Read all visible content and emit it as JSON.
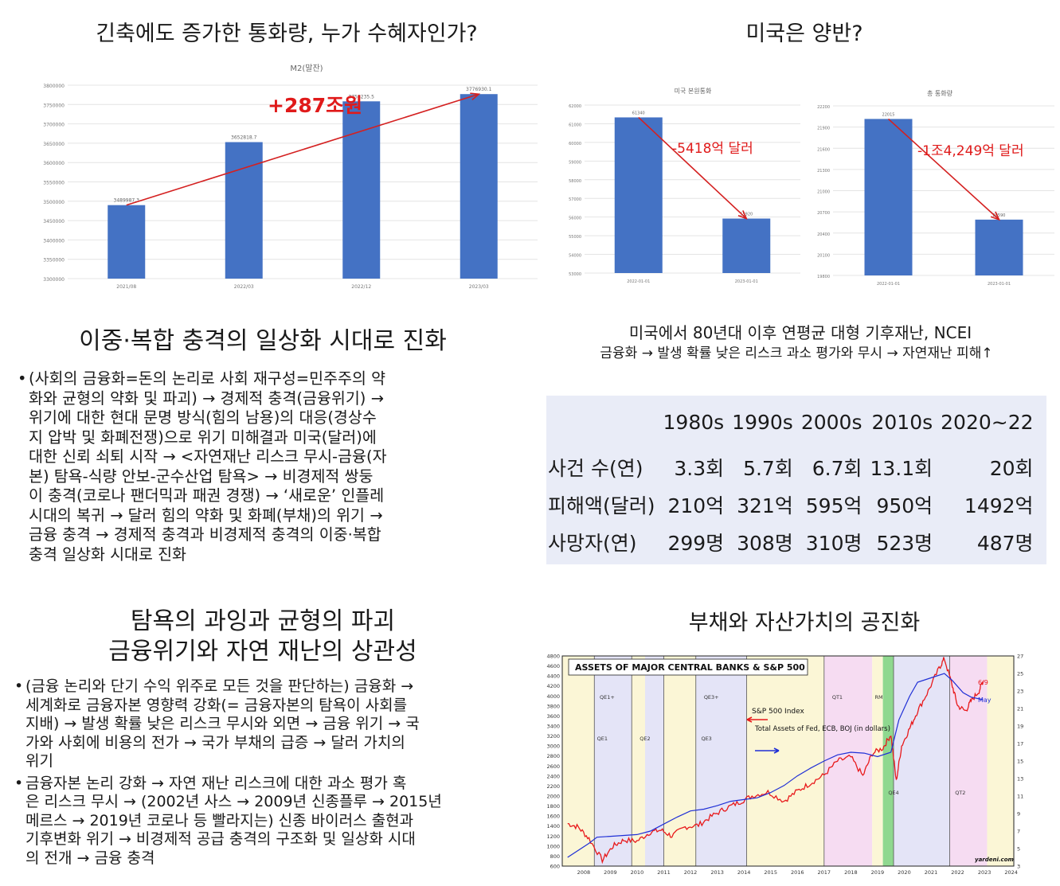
{
  "panel1": {
    "title": "긴축에도 증가한 통화량, 누가 수혜자인가?",
    "chart_title": "M2(말잔)",
    "annotation": "+287조원"
  },
  "panel2": {
    "title": "미국은 양반?",
    "left_chart_title": "미국 본원통화",
    "left_annotation": "-5418억 달러",
    "right_chart_title": "총 통화량",
    "right_annotation": "-1조4,249억 달러"
  },
  "panel3": {
    "heading": "이중·복합 충격의 일상화 시대로 진화",
    "bullets": [
      {
        "lines": [
          "(사회의 금융화=돈의 논리로 사회 재구성=민주주의 약",
          "화와 균형의 약화 및 파괴) → 경제적 충격(금융위기) →",
          "위기에 대한 현대 문명 방식(힘의 남용)의 대응(경상수",
          "지 압박 및 화폐전쟁)으로 위기 미해결과 미국(달러)에",
          "대한 신뢰 쇠퇴 시작 → <자연재난 리스크 무시-금융(자",
          "본) 탐욕-식량 안보-군수산업 탐욕> → 비경제적 쌍둥",
          "이 충격(코로나 팬더믹과 패권 경쟁) → ‘새로운’ 인플레",
          "시대의 복귀 → 달러 힘의 약화 및 화폐(부채)의 위기 →",
          "금융 충격 → 경제적 충격과 비경제적 충격의 이중·복합",
          "충격 일상화 시대로 진화"
        ]
      }
    ]
  },
  "panel4": {
    "subtitle": "미국에서 80년대 이후 연평균 대형 기후재난, NCEI",
    "subtitle2": "금융화 → 발생 확률 낮은 리스크 과소 평가와 무시 → 자연재난 피해↑",
    "table": {
      "headers": [
        "",
        "1980s",
        "1990s",
        "2000s",
        "2010s",
        "2020~22"
      ],
      "rows": [
        [
          "사건 수(연)",
          "3.3회",
          "5.7회",
          "6.7회",
          "13.1회",
          "20회"
        ],
        [
          "피해액(달러)",
          "210억",
          "321억",
          "595억",
          "950억",
          "1492억"
        ],
        [
          "사망자(연)",
          "299명",
          "308명",
          "310명",
          "523명",
          "487명"
        ]
      ]
    }
  },
  "panel5": {
    "heading_line1": "탐욕의 과잉과 균형의 파괴",
    "heading_line2": "금융위기와 자연 재난의 상관성",
    "bullets": [
      {
        "lines": [
          "(금융 논리와 단기 수익 위주로 모든 것을 판단하는) 금융화 →",
          "세계화로 금융자본 영향력 강화(= 금융자본의 탐욕이 사회를",
          "지배) → 발생 확률 낮은 리스크 무시와 외면 → 금융 위기 → 국",
          "가와 사회에 비용의 전가 → 국가 부채의 급증 → 달러 가치의",
          "위기"
        ]
      },
      {
        "lines": [
          " 금융자본 논리 강화 → 자연 재난 리스크에 대한 과소 평가 혹",
          "은 리스크 무시 → (2002년 사스 → 2009년 신종플루 → 2015년",
          "메르스 → 2019년 코로나 등 빨라지는) 신종 바이러스 출현과",
          "기후변화 위기 → 비경제적 공급 충격의 구조화 및 일상화 시대",
          "의 전개 → 금융 충격"
        ]
      }
    ]
  },
  "panel6": {
    "title": "부채와 자산가치의 공진화",
    "chart_title": "ASSETS OF MAJOR CENTRAL BANKS & S&P 500",
    "legend_sp": "S&P 500 Index",
    "legend_assets": "Total Assets of Fed, ECB, BOJ (in dollars)",
    "end_label_sp": "6/9",
    "end_label_assets": "May",
    "credit": "yardeni.com"
  },
  "chart_data": [
    {
      "type": "bar",
      "title": "M2(말잔)",
      "categories": [
        "2021/08",
        "2022/03",
        "2022/12",
        "2023/03"
      ],
      "values": [
        3489987.3,
        3652818.7,
        3758235.5,
        3776930.1
      ],
      "data_labels": [
        "3489987.3",
        "3652818.7",
        "3758235.5",
        "3776930.1"
      ],
      "ylim": [
        3300000,
        3800000
      ],
      "yticks": [
        "3300000",
        "3350000",
        "3400000",
        "3450000",
        "3500000",
        "3550000",
        "3600000",
        "3650000",
        "3700000",
        "3750000",
        "3800000"
      ],
      "color": "#4472c4",
      "annotation": "+287조원"
    },
    {
      "type": "bar",
      "title": "미국 본원통화",
      "categories": [
        "2022-01-01",
        "2023-01-01"
      ],
      "values": [
        61340,
        55920
      ],
      "data_labels": [
        "61340",
        "55920"
      ],
      "ylim": [
        53000,
        62000
      ],
      "yticks": [
        "53000",
        "54000",
        "55000",
        "56000",
        "57000",
        "58000",
        "59000",
        "60000",
        "61000",
        "62000"
      ],
      "color": "#4472c4",
      "annotation": "-5418억 달러"
    },
    {
      "type": "bar",
      "title": "총 통화량",
      "categories": [
        "2022-01-01",
        "2023-01-01"
      ],
      "values": [
        22015,
        20590
      ],
      "data_labels": [
        "22015",
        "20590"
      ],
      "ylim": [
        19800,
        22200
      ],
      "yticks": [
        "19800",
        "20100",
        "20400",
        "20700",
        "21000",
        "21300",
        "21600",
        "21900",
        "22200"
      ],
      "color": "#4472c4",
      "annotation": "-1조4,249억 달러"
    },
    {
      "type": "line",
      "title": "ASSETS OF MAJOR CENTRAL BANKS & S&P 500",
      "x": [
        "2008",
        "2009",
        "2010",
        "2011",
        "2012",
        "2013",
        "2014",
        "2015",
        "2016",
        "2017",
        "2018",
        "2019",
        "2020",
        "2021",
        "2022",
        "2023",
        "2024"
      ],
      "y_left_ticks": [
        "600",
        "800",
        "1000",
        "1200",
        "1400",
        "1600",
        "1800",
        "2000",
        "2200",
        "2400",
        "2600",
        "2800",
        "3000",
        "3200",
        "3400",
        "3600",
        "3800",
        "4000",
        "4200",
        "4400",
        "4600",
        "4800"
      ],
      "y_right_ticks": [
        "3",
        "5",
        "7",
        "9",
        "11",
        "13",
        "15",
        "17",
        "19",
        "21",
        "23",
        "25",
        "27"
      ],
      "ylim_left": [
        600,
        4800
      ],
      "ylim_right": [
        3,
        27
      ],
      "series": [
        {
          "name": "S&P 500 Index",
          "color": "#e8191b",
          "x": [
            2007.9,
            2008.3,
            2008.7,
            2009.2,
            2009.6,
            2010.0,
            2010.5,
            2011.0,
            2011.4,
            2011.8,
            2012.3,
            2012.8,
            2013.3,
            2013.8,
            2014.3,
            2014.8,
            2015.4,
            2016.0,
            2016.5,
            2017.0,
            2017.5,
            2018.0,
            2018.5,
            2018.95,
            2019.3,
            2019.7,
            2020.0,
            2020.2,
            2020.4,
            2020.7,
            2021.0,
            2021.4,
            2021.8,
            2022.0,
            2022.3,
            2022.5,
            2022.8,
            2023.0,
            2023.3,
            2023.45
          ],
          "y": [
            1450,
            1380,
            1150,
            720,
            1000,
            1120,
            1100,
            1280,
            1320,
            1200,
            1380,
            1420,
            1600,
            1750,
            1870,
            2000,
            2080,
            1900,
            2100,
            2260,
            2420,
            2700,
            2780,
            2400,
            2850,
            2960,
            3230,
            2300,
            3000,
            3350,
            3700,
            4100,
            4550,
            4750,
            4200,
            3800,
            3700,
            3900,
            4100,
            4300
          ]
        },
        {
          "name": "Total Assets of Fed, ECB, BOJ (in dollars)",
          "color": "#1f2fd6",
          "x": [
            2007.9,
            2008.7,
            2009.0,
            2009.5,
            2010.0,
            2010.5,
            2011.0,
            2011.5,
            2012.0,
            2012.5,
            2013.0,
            2013.5,
            2014.0,
            2014.5,
            2015.0,
            2015.5,
            2016.0,
            2016.5,
            2017.0,
            2017.5,
            2018.0,
            2018.5,
            2019.0,
            2019.5,
            2020.0,
            2020.3,
            2020.7,
            2021.0,
            2021.5,
            2022.0,
            2022.3,
            2022.7,
            2023.0,
            2023.45
          ],
          "y": [
            4.0,
            5.6,
            6.3,
            6.4,
            6.5,
            6.6,
            7.0,
            7.8,
            8.6,
            9.3,
            9.5,
            9.9,
            10.4,
            10.6,
            10.8,
            11.4,
            12.2,
            13.3,
            14.2,
            15.0,
            15.7,
            16.0,
            15.9,
            15.5,
            16.0,
            19.7,
            22.4,
            24.0,
            24.5,
            25.0,
            24.2,
            22.8,
            22.3,
            22.0
          ]
        }
      ],
      "shaded_periods": [
        "QE1+",
        "QE1",
        "QE2",
        "QE3+",
        "QE3",
        "QT1",
        "RM",
        "QE4",
        "QT2"
      ]
    }
  ]
}
